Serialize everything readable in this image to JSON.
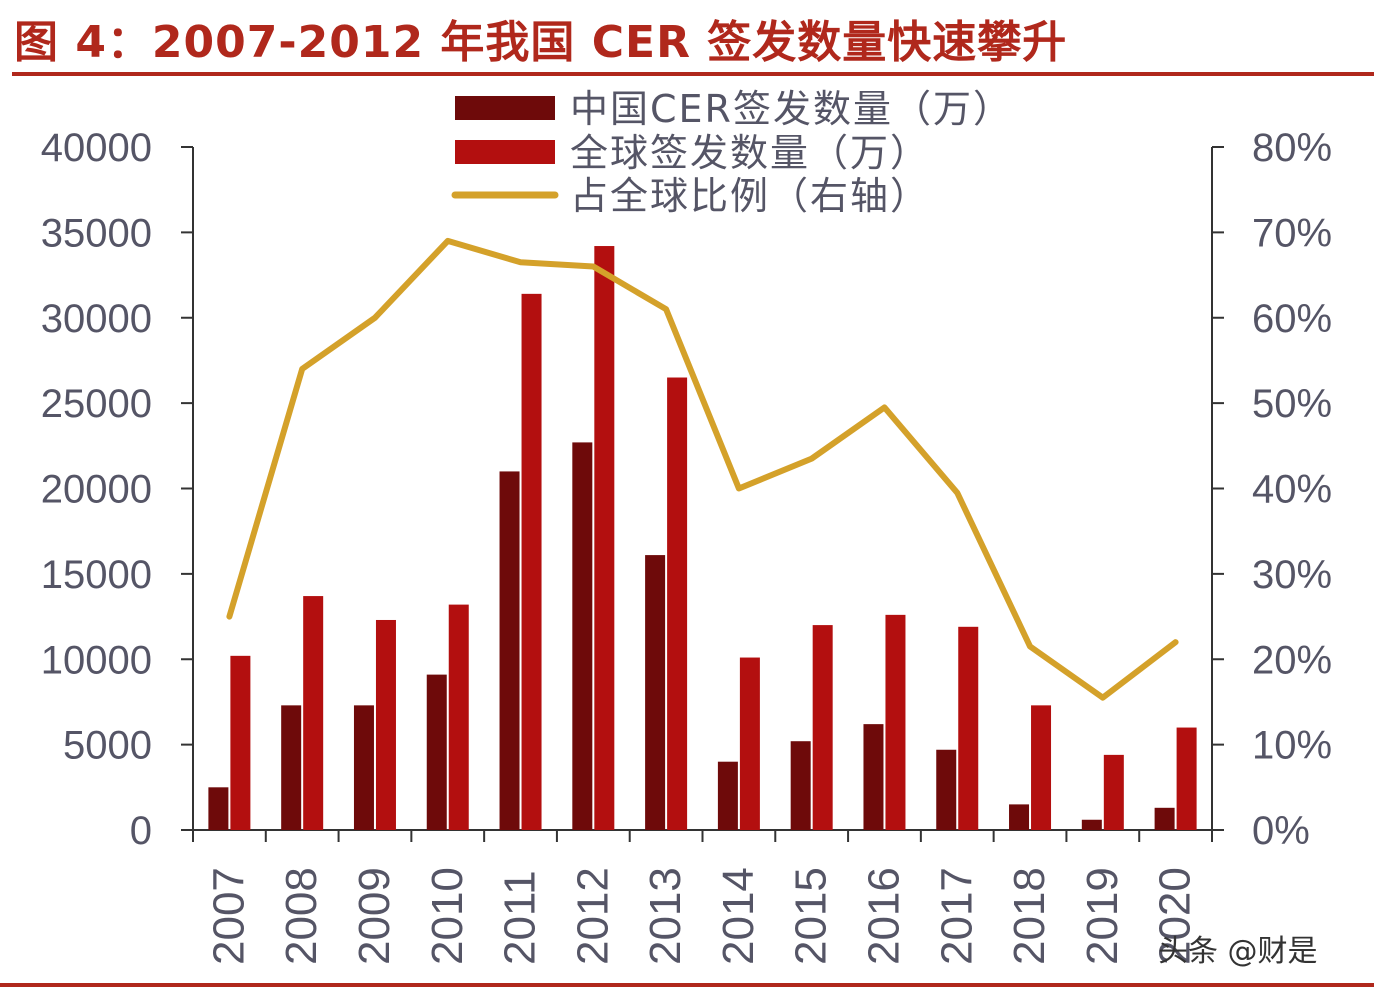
{
  "title": "图 4：2007-2012 年我国 CER 签发数量快速攀升",
  "watermark": "头条 @财是",
  "colors": {
    "title": "#b0281c",
    "china_bar": "#6e0a0a",
    "global_bar": "#b30f0f",
    "ratio_line": "#d4a12a",
    "axis_text": "#555566"
  },
  "chart_data": {
    "type": "bar",
    "categories": [
      "2007",
      "2008",
      "2009",
      "2010",
      "2011",
      "2012",
      "2013",
      "2014",
      "2015",
      "2016",
      "2017",
      "2018",
      "2019",
      "2020"
    ],
    "series": [
      {
        "name": "中国CER签发数量（万）",
        "type": "bar",
        "axis": "left",
        "values": [
          2500,
          7300,
          7300,
          9100,
          21000,
          22700,
          16100,
          4000,
          5200,
          6200,
          4700,
          1500,
          600,
          1300
        ]
      },
      {
        "name": "全球签发数量（万）",
        "type": "bar",
        "axis": "left",
        "values": [
          10200,
          13700,
          12300,
          13200,
          31400,
          34200,
          26500,
          10100,
          12000,
          12600,
          11900,
          7300,
          4400,
          6000
        ]
      },
      {
        "name": "占全球比例（右轴）",
        "type": "line",
        "axis": "right",
        "values": [
          0.25,
          0.54,
          0.6,
          0.69,
          0.665,
          0.66,
          0.61,
          0.4,
          0.435,
          0.495,
          0.395,
          0.215,
          0.155,
          0.22
        ]
      }
    ],
    "ylim_left": [
      0,
      40000
    ],
    "ylim_right": [
      0,
      0.8
    ],
    "yticks_left": [
      "0",
      "5000",
      "10000",
      "15000",
      "20000",
      "25000",
      "30000",
      "35000",
      "40000"
    ],
    "yticks_right": [
      "0%",
      "10%",
      "20%",
      "30%",
      "40%",
      "50%",
      "60%",
      "70%",
      "80%"
    ],
    "legend_position": "top-center",
    "grid": false
  }
}
